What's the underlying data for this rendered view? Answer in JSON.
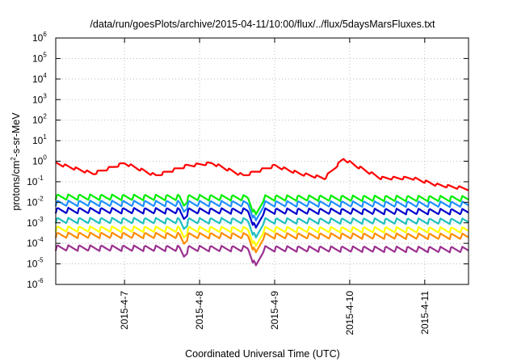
{
  "chart_data": {
    "type": "line",
    "title": "/data/run/goesPlots/archive/2015-04-11/10:00/flux/../flux/5daysMarsFluxes.txt",
    "xlabel": "Coordinated Universal Time (UTC)",
    "ylabel": "protons/cm2-s-sr-MeV",
    "ylabel_parts": {
      "pre": "protons/cm",
      "sup": "2",
      "post": "-s-sr-MeV"
    },
    "yscale": "log",
    "ylim": [
      1e-06,
      1000000.0
    ],
    "y_ticks": [
      {
        "base": "10",
        "exp": "-6",
        "value": -6
      },
      {
        "base": "10",
        "exp": "-5",
        "value": -5
      },
      {
        "base": "10",
        "exp": "-4",
        "value": -4
      },
      {
        "base": "10",
        "exp": "-3",
        "value": -3
      },
      {
        "base": "10",
        "exp": "-2",
        "value": -2
      },
      {
        "base": "10",
        "exp": "-1",
        "value": -1
      },
      {
        "base": "10",
        "exp": "0",
        "value": 0
      },
      {
        "base": "10",
        "exp": "1",
        "value": 1
      },
      {
        "base": "10",
        "exp": "2",
        "value": 2
      },
      {
        "base": "10",
        "exp": "3",
        "value": 3
      },
      {
        "base": "10",
        "exp": "4",
        "value": 4
      },
      {
        "base": "10",
        "exp": "5",
        "value": 5
      },
      {
        "base": "10",
        "exp": "6",
        "value": 6
      }
    ],
    "xlim": [
      "2015-04-06T02:00",
      "2015-04-11T14:00"
    ],
    "x_ticks": [
      {
        "label": "2015-4-7",
        "t": "2015-04-07T00:00"
      },
      {
        "label": "2015-4-8",
        "t": "2015-04-08T00:00"
      },
      {
        "label": "2015-4-9",
        "t": "2015-04-09T00:00"
      },
      {
        "label": "2015-4-10",
        "t": "2015-04-10T00:00"
      },
      {
        "label": "2015-4-11",
        "t": "2015-04-11T00:00"
      }
    ],
    "grid": true,
    "legend": "none",
    "sawtooth": {
      "period_hours": 3.5,
      "relative_drop": 0.5,
      "dropouts": [
        {
          "t": "2015-04-07T19:00",
          "depth_decades": 0.35,
          "width_hours": 1.5
        },
        {
          "t": "2015-04-08T18:00",
          "depth_decades": 0.9,
          "width_hours": 2.5
        }
      ]
    },
    "series": [
      {
        "color": "#ff0000",
        "x": [
          "2015-04-06T02:00",
          "2015-04-06T14:00",
          "2015-04-07T00:00",
          "2015-04-07T10:00",
          "2015-04-07T20:00",
          "2015-04-08T04:00",
          "2015-04-08T14:00",
          "2015-04-09T00:00",
          "2015-04-09T08:00",
          "2015-04-09T16:00",
          "2015-04-09T22:00",
          "2015-04-10T02:00",
          "2015-04-10T10:00",
          "2015-04-10T20:00",
          "2015-04-11T04:00",
          "2015-04-11T14:00"
        ],
        "y": [
          0.8,
          0.25,
          0.8,
          0.2,
          0.6,
          0.8,
          0.2,
          0.6,
          0.25,
          0.15,
          1.3,
          0.6,
          0.15,
          0.15,
          0.07,
          0.045
        ]
      },
      {
        "color": "#00ee00",
        "x": [
          "2015-04-06T02:00",
          "2015-04-11T14:00"
        ],
        "y": [
          0.018,
          0.015
        ]
      },
      {
        "color": "#1e90ff",
        "x": [
          "2015-04-06T02:00",
          "2015-04-11T14:00"
        ],
        "y": [
          0.009,
          0.008
        ]
      },
      {
        "color": "#0000cd",
        "x": [
          "2015-04-06T02:00",
          "2015-04-11T14:00"
        ],
        "y": [
          0.004,
          0.0035
        ]
      },
      {
        "color": "#20c0c0",
        "x": [
          "2015-04-06T02:00",
          "2015-04-11T14:00"
        ],
        "y": [
          0.0013,
          0.0012
        ]
      },
      {
        "color": "#ffff00",
        "x": [
          "2015-04-06T02:00",
          "2015-04-11T14:00"
        ],
        "y": [
          0.0005,
          0.00045
        ]
      },
      {
        "color": "#ff8c00",
        "x": [
          "2015-04-06T02:00",
          "2015-04-11T14:00"
        ],
        "y": [
          0.00025,
          0.00022
        ]
      },
      {
        "color": "#9b308f",
        "x": [
          "2015-04-06T02:00",
          "2015-04-11T14:00"
        ],
        "y": [
          6e-05,
          5e-05
        ]
      }
    ]
  }
}
